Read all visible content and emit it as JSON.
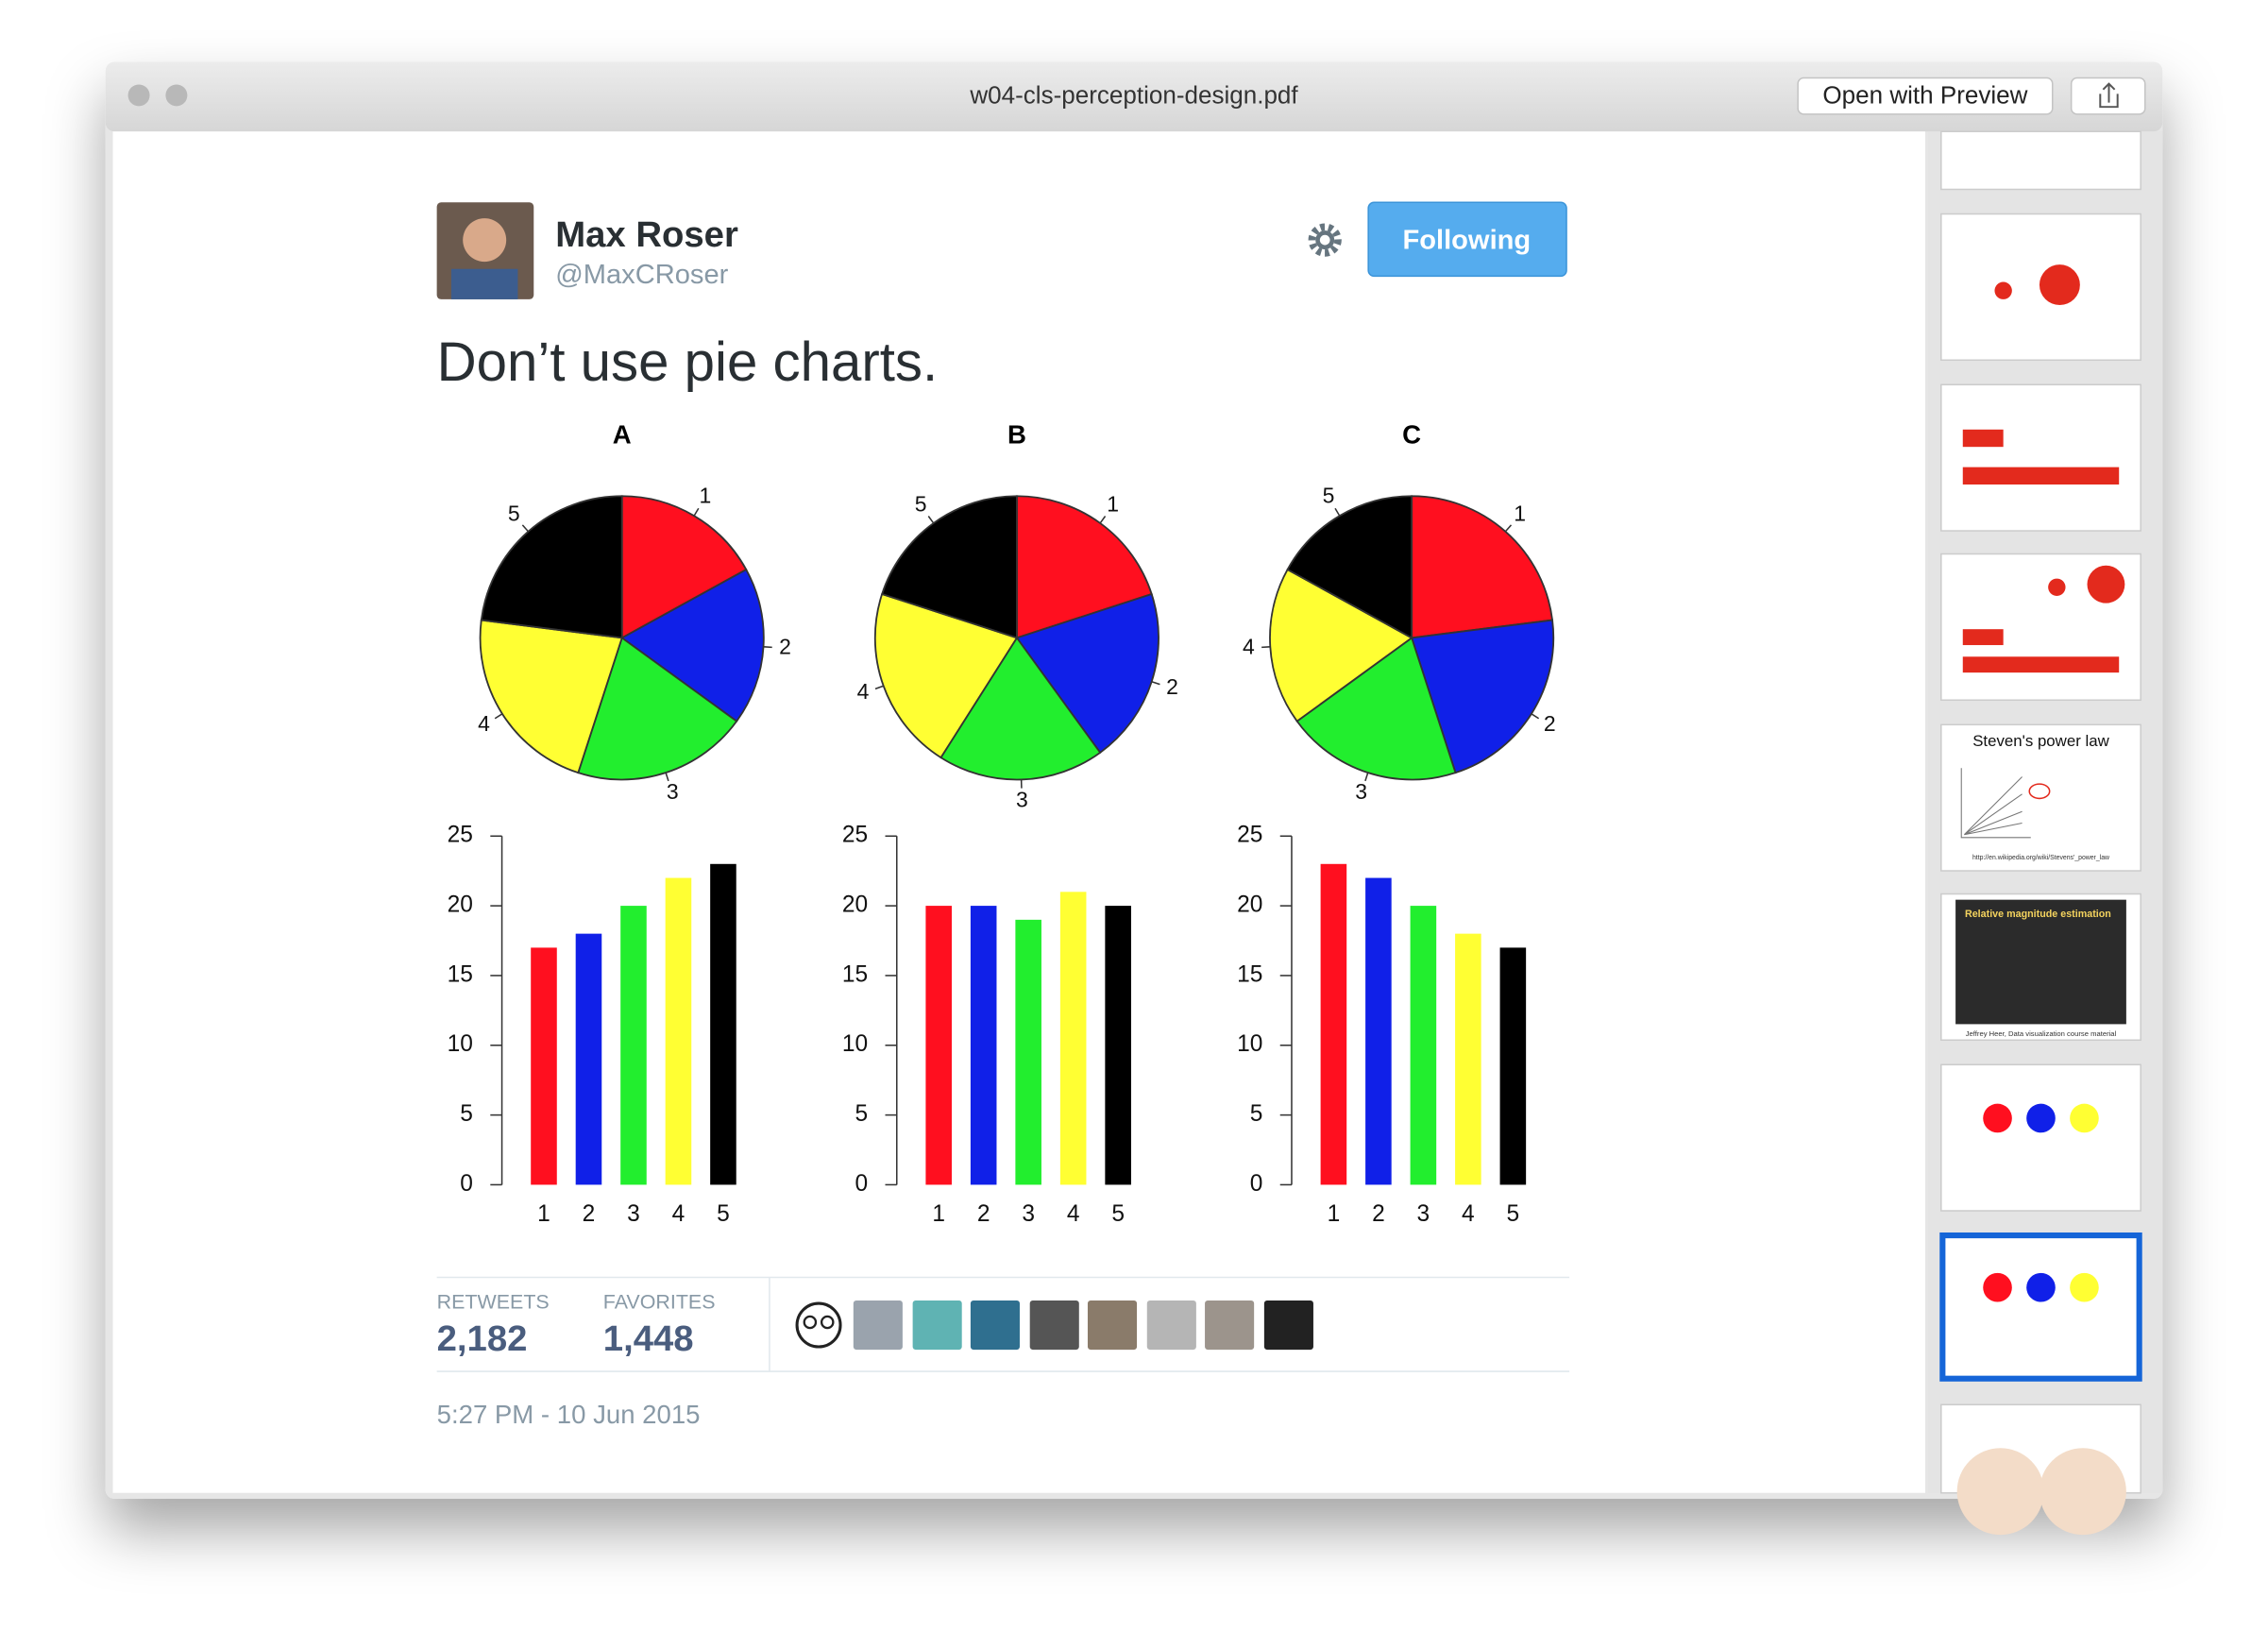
{
  "window": {
    "title": "w04-cls-perception-design.pdf",
    "open_button": "Open with Preview"
  },
  "tweet": {
    "name": "Max Roser",
    "handle": "@MaxCRoser",
    "follow_button": "Following",
    "text": "Don’t use pie charts.",
    "retweets_label": "RETWEETS",
    "retweets": "2,182",
    "favorites_label": "FAVORITES",
    "favorites": "1,448",
    "timestamp": "5:27 PM - 10 Jun 2015"
  },
  "chart_data": [
    {
      "type": "pie",
      "title": "A",
      "categories": [
        "1",
        "2",
        "3",
        "4",
        "5"
      ],
      "values": [
        17,
        18,
        20,
        22,
        23
      ],
      "colors": [
        "#ff0f1f",
        "#1020e8",
        "#22ee2e",
        "#ffff33",
        "#000000"
      ]
    },
    {
      "type": "bar",
      "categories": [
        "1",
        "2",
        "3",
        "4",
        "5"
      ],
      "values": [
        17,
        18,
        20,
        22,
        23
      ],
      "colors": [
        "#ff0f1f",
        "#1020e8",
        "#22ee2e",
        "#ffff33",
        "#000000"
      ],
      "ylim": [
        0,
        25
      ],
      "yticks": [
        0,
        5,
        10,
        15,
        20,
        25
      ]
    },
    {
      "type": "pie",
      "title": "B",
      "categories": [
        "1",
        "2",
        "3",
        "4",
        "5"
      ],
      "values": [
        20,
        20,
        19,
        21,
        20
      ],
      "colors": [
        "#ff0f1f",
        "#1020e8",
        "#22ee2e",
        "#ffff33",
        "#000000"
      ]
    },
    {
      "type": "bar",
      "categories": [
        "1",
        "2",
        "3",
        "4",
        "5"
      ],
      "values": [
        20,
        20,
        19,
        21,
        20
      ],
      "colors": [
        "#ff0f1f",
        "#1020e8",
        "#22ee2e",
        "#ffff33",
        "#000000"
      ],
      "ylim": [
        0,
        25
      ],
      "yticks": [
        0,
        5,
        10,
        15,
        20,
        25
      ]
    },
    {
      "type": "pie",
      "title": "C",
      "categories": [
        "1",
        "2",
        "3",
        "4",
        "5"
      ],
      "values": [
        23,
        22,
        20,
        18,
        17
      ],
      "colors": [
        "#ff0f1f",
        "#1020e8",
        "#22ee2e",
        "#ffff33",
        "#000000"
      ]
    },
    {
      "type": "bar",
      "categories": [
        "1",
        "2",
        "3",
        "4",
        "5"
      ],
      "values": [
        23,
        22,
        20,
        18,
        17
      ],
      "colors": [
        "#ff0f1f",
        "#1020e8",
        "#22ee2e",
        "#ffff33",
        "#000000"
      ],
      "ylim": [
        0,
        25
      ],
      "yticks": [
        0,
        5,
        10,
        15,
        20,
        25
      ]
    }
  ],
  "thumbnails": {
    "power_law_title": "Steven's power law",
    "power_law_url": "http://en.wikipedia.org/wiki/Stevens'_power_law",
    "magnitude_title": "Relative magnitude estimation",
    "magnitude_credit": "Jeffrey Heer, Data visualization course material"
  }
}
